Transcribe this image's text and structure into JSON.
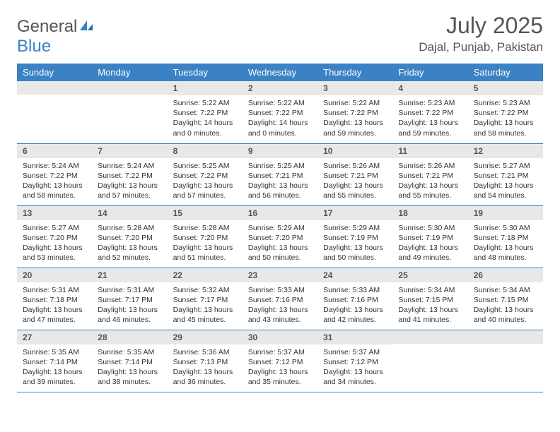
{
  "logo": {
    "word1": "General",
    "word2": "Blue"
  },
  "title": {
    "month": "July 2025",
    "location": "Dajal, Punjab, Pakistan"
  },
  "colors": {
    "header_bg": "#3a82c4",
    "header_text": "#ffffff",
    "daynum_bg": "#e8e8e8",
    "row_border": "#3a82c4",
    "body_text": "#333333",
    "title_text": "#555555"
  },
  "dayHeaders": [
    "Sunday",
    "Monday",
    "Tuesday",
    "Wednesday",
    "Thursday",
    "Friday",
    "Saturday"
  ],
  "weeks": [
    [
      {
        "n": "",
        "lines": []
      },
      {
        "n": "",
        "lines": []
      },
      {
        "n": "1",
        "lines": [
          "Sunrise: 5:22 AM",
          "Sunset: 7:22 PM",
          "Daylight: 14 hours and 0 minutes."
        ]
      },
      {
        "n": "2",
        "lines": [
          "Sunrise: 5:22 AM",
          "Sunset: 7:22 PM",
          "Daylight: 14 hours and 0 minutes."
        ]
      },
      {
        "n": "3",
        "lines": [
          "Sunrise: 5:22 AM",
          "Sunset: 7:22 PM",
          "Daylight: 13 hours and 59 minutes."
        ]
      },
      {
        "n": "4",
        "lines": [
          "Sunrise: 5:23 AM",
          "Sunset: 7:22 PM",
          "Daylight: 13 hours and 59 minutes."
        ]
      },
      {
        "n": "5",
        "lines": [
          "Sunrise: 5:23 AM",
          "Sunset: 7:22 PM",
          "Daylight: 13 hours and 58 minutes."
        ]
      }
    ],
    [
      {
        "n": "6",
        "lines": [
          "Sunrise: 5:24 AM",
          "Sunset: 7:22 PM",
          "Daylight: 13 hours and 58 minutes."
        ]
      },
      {
        "n": "7",
        "lines": [
          "Sunrise: 5:24 AM",
          "Sunset: 7:22 PM",
          "Daylight: 13 hours and 57 minutes."
        ]
      },
      {
        "n": "8",
        "lines": [
          "Sunrise: 5:25 AM",
          "Sunset: 7:22 PM",
          "Daylight: 13 hours and 57 minutes."
        ]
      },
      {
        "n": "9",
        "lines": [
          "Sunrise: 5:25 AM",
          "Sunset: 7:21 PM",
          "Daylight: 13 hours and 56 minutes."
        ]
      },
      {
        "n": "10",
        "lines": [
          "Sunrise: 5:26 AM",
          "Sunset: 7:21 PM",
          "Daylight: 13 hours and 55 minutes."
        ]
      },
      {
        "n": "11",
        "lines": [
          "Sunrise: 5:26 AM",
          "Sunset: 7:21 PM",
          "Daylight: 13 hours and 55 minutes."
        ]
      },
      {
        "n": "12",
        "lines": [
          "Sunrise: 5:27 AM",
          "Sunset: 7:21 PM",
          "Daylight: 13 hours and 54 minutes."
        ]
      }
    ],
    [
      {
        "n": "13",
        "lines": [
          "Sunrise: 5:27 AM",
          "Sunset: 7:20 PM",
          "Daylight: 13 hours and 53 minutes."
        ]
      },
      {
        "n": "14",
        "lines": [
          "Sunrise: 5:28 AM",
          "Sunset: 7:20 PM",
          "Daylight: 13 hours and 52 minutes."
        ]
      },
      {
        "n": "15",
        "lines": [
          "Sunrise: 5:28 AM",
          "Sunset: 7:20 PM",
          "Daylight: 13 hours and 51 minutes."
        ]
      },
      {
        "n": "16",
        "lines": [
          "Sunrise: 5:29 AM",
          "Sunset: 7:20 PM",
          "Daylight: 13 hours and 50 minutes."
        ]
      },
      {
        "n": "17",
        "lines": [
          "Sunrise: 5:29 AM",
          "Sunset: 7:19 PM",
          "Daylight: 13 hours and 50 minutes."
        ]
      },
      {
        "n": "18",
        "lines": [
          "Sunrise: 5:30 AM",
          "Sunset: 7:19 PM",
          "Daylight: 13 hours and 49 minutes."
        ]
      },
      {
        "n": "19",
        "lines": [
          "Sunrise: 5:30 AM",
          "Sunset: 7:18 PM",
          "Daylight: 13 hours and 48 minutes."
        ]
      }
    ],
    [
      {
        "n": "20",
        "lines": [
          "Sunrise: 5:31 AM",
          "Sunset: 7:18 PM",
          "Daylight: 13 hours and 47 minutes."
        ]
      },
      {
        "n": "21",
        "lines": [
          "Sunrise: 5:31 AM",
          "Sunset: 7:17 PM",
          "Daylight: 13 hours and 46 minutes."
        ]
      },
      {
        "n": "22",
        "lines": [
          "Sunrise: 5:32 AM",
          "Sunset: 7:17 PM",
          "Daylight: 13 hours and 45 minutes."
        ]
      },
      {
        "n": "23",
        "lines": [
          "Sunrise: 5:33 AM",
          "Sunset: 7:16 PM",
          "Daylight: 13 hours and 43 minutes."
        ]
      },
      {
        "n": "24",
        "lines": [
          "Sunrise: 5:33 AM",
          "Sunset: 7:16 PM",
          "Daylight: 13 hours and 42 minutes."
        ]
      },
      {
        "n": "25",
        "lines": [
          "Sunrise: 5:34 AM",
          "Sunset: 7:15 PM",
          "Daylight: 13 hours and 41 minutes."
        ]
      },
      {
        "n": "26",
        "lines": [
          "Sunrise: 5:34 AM",
          "Sunset: 7:15 PM",
          "Daylight: 13 hours and 40 minutes."
        ]
      }
    ],
    [
      {
        "n": "27",
        "lines": [
          "Sunrise: 5:35 AM",
          "Sunset: 7:14 PM",
          "Daylight: 13 hours and 39 minutes."
        ]
      },
      {
        "n": "28",
        "lines": [
          "Sunrise: 5:35 AM",
          "Sunset: 7:14 PM",
          "Daylight: 13 hours and 38 minutes."
        ]
      },
      {
        "n": "29",
        "lines": [
          "Sunrise: 5:36 AM",
          "Sunset: 7:13 PM",
          "Daylight: 13 hours and 36 minutes."
        ]
      },
      {
        "n": "30",
        "lines": [
          "Sunrise: 5:37 AM",
          "Sunset: 7:12 PM",
          "Daylight: 13 hours and 35 minutes."
        ]
      },
      {
        "n": "31",
        "lines": [
          "Sunrise: 5:37 AM",
          "Sunset: 7:12 PM",
          "Daylight: 13 hours and 34 minutes."
        ]
      },
      {
        "n": "",
        "lines": []
      },
      {
        "n": "",
        "lines": []
      }
    ]
  ]
}
